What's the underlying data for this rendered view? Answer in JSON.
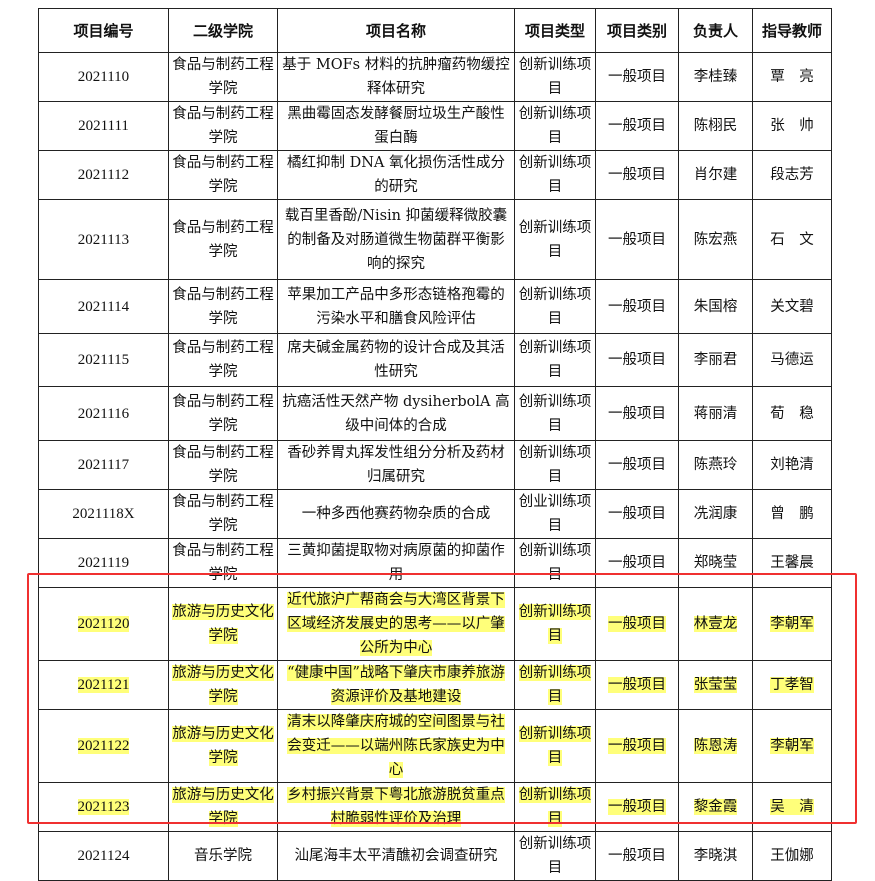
{
  "table": {
    "headers": [
      "项目编号",
      "二级学院",
      "项目名称",
      "项目类型",
      "项目类别",
      "负责人",
      "指导教师"
    ],
    "rows": [
      {
        "code": "2021110",
        "college": "食品与制药工程学院",
        "name": "基于 MOFs 材料的抗肿瘤药物缓控释体研究",
        "type": "创新训练项目",
        "category": "一般项目",
        "leader": "李桂臻",
        "advisor": "覃　亮",
        "highlight": false
      },
      {
        "code": "2021111",
        "college": "食品与制药工程学院",
        "name": "黑曲霉固态发酵餐厨垃圾生产酸性蛋白酶",
        "type": "创新训练项目",
        "category": "一般项目",
        "leader": "陈栩民",
        "advisor": "张　帅",
        "highlight": false
      },
      {
        "code": "2021112",
        "college": "食品与制药工程学院",
        "name": "橘红抑制 DNA 氧化损伤活性成分的研究",
        "type": "创新训练项目",
        "category": "一般项目",
        "leader": "肖尔建",
        "advisor": "段志芳",
        "highlight": false
      },
      {
        "code": "2021113",
        "college": "食品与制药工程学院",
        "name": "载百里香酚/Nisin 抑菌缓释微胶囊的制备及对肠道微生物菌群平衡影响的探究",
        "type": "创新训练项目",
        "category": "一般项目",
        "leader": "陈宏燕",
        "advisor": "石　文",
        "highlight": false
      },
      {
        "code": "2021114",
        "college": "食品与制药工程学院",
        "name": "苹果加工产品中多形态链格孢霉的污染水平和膳食风险评估",
        "type": "创新训练项目",
        "category": "一般项目",
        "leader": "朱国榕",
        "advisor": "关文碧",
        "highlight": false
      },
      {
        "code": "2021115",
        "college": "食品与制药工程学院",
        "name": "席夫碱金属药物的设计合成及其活性研究",
        "type": "创新训练项目",
        "category": "一般项目",
        "leader": "李丽君",
        "advisor": "马德运",
        "highlight": false
      },
      {
        "code": "2021116",
        "college": "食品与制药工程学院",
        "name": "抗癌活性天然产物 dysiherbolA 高级中间体的合成",
        "type": "创新训练项目",
        "category": "一般项目",
        "leader": "蒋丽清",
        "advisor": "荀　稳",
        "highlight": false
      },
      {
        "code": "2021117",
        "college": "食品与制药工程学院",
        "name": "香砂养胃丸挥发性组分分析及药材归属研究",
        "type": "创新训练项目",
        "category": "一般项目",
        "leader": "陈燕玲",
        "advisor": "刘艳清",
        "highlight": false
      },
      {
        "code": "2021118X",
        "college": "食品与制药工程学院",
        "name": "一种多西他赛药物杂质的合成",
        "type": "创业训练项目",
        "category": "一般项目",
        "leader": "冼润康",
        "advisor": "曾　鹏",
        "highlight": false
      },
      {
        "code": "2021119",
        "college": "食品与制药工程学院",
        "name": "三黄抑菌提取物对病原菌的抑菌作用",
        "type": "创新训练项目",
        "category": "一般项目",
        "leader": "郑晓莹",
        "advisor": "王馨晨",
        "highlight": false
      },
      {
        "code": "2021120",
        "college": "旅游与历史文化学院",
        "name": "近代旅沪广帮商会与大湾区背景下区域经济发展史的思考——以广肇公所为中心",
        "type": "创新训练项目",
        "category": "一般项目",
        "leader": "林壹龙",
        "advisor": "李朝军",
        "highlight": true
      },
      {
        "code": "2021121",
        "college": "旅游与历史文化学院",
        "name": "“健康中国”战略下肇庆市康养旅游资源评价及基地建设",
        "type": "创新训练项目",
        "category": "一般项目",
        "leader": "张莹莹",
        "advisor": "丁孝智",
        "highlight": true
      },
      {
        "code": "2021122",
        "college": "旅游与历史文化学院",
        "name": "清末以降肇庆府城的空间图景与社会变迁——以端州陈氏家族史为中心",
        "type": "创新训练项目",
        "category": "一般项目",
        "leader": "陈恩涛",
        "advisor": "李朝军",
        "highlight": true
      },
      {
        "code": "2021123",
        "college": "旅游与历史文化学院",
        "name": "乡村振兴背景下粤北旅游脱贫重点村脆弱性评价及治理",
        "type": "创新训练项目",
        "category": "一般项目",
        "leader": "黎金霞",
        "advisor": "吴　清",
        "highlight": true
      },
      {
        "code": "2021124",
        "college": "音乐学院",
        "name": "汕尾海丰太平清醮初会调查研究",
        "type": "创新训练项目",
        "category": "一般项目",
        "leader": "李晓淇",
        "advisor": "王伽娜",
        "highlight": false
      }
    ]
  },
  "colors": {
    "highlight": "#ffff7a",
    "annotation_box": "#f03030"
  }
}
